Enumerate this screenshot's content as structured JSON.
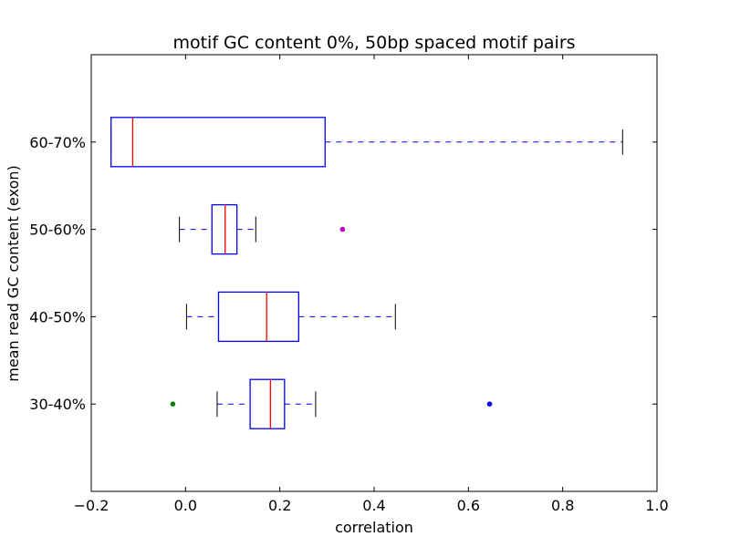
{
  "chart_data": {
    "type": "box",
    "orientation": "horizontal",
    "title": "motif GC content 0%, 50bp spaced motif pairs",
    "xlabel": "correlation",
    "ylabel": "mean read GC content (exon)",
    "xlim": [
      -0.2,
      1.0
    ],
    "x_ticks": [
      "−0.2",
      "0.0",
      "0.2",
      "0.4",
      "0.6",
      "0.8",
      "1.0"
    ],
    "x_tick_values": [
      -0.2,
      0.0,
      0.2,
      0.4,
      0.6,
      0.8,
      1.0
    ],
    "grid": false,
    "categories": [
      "30-40%",
      "40-50%",
      "50-60%",
      "60-70%"
    ],
    "boxes": [
      {
        "category": "30-40%",
        "whisker_low": 0.067,
        "q1": 0.137,
        "median": 0.18,
        "q3": 0.21,
        "whisker_high": 0.276,
        "outliers": [
          {
            "value": -0.027,
            "color": "#008000"
          },
          {
            "value": 0.645,
            "color": "#0000ff"
          }
        ]
      },
      {
        "category": "40-50%",
        "whisker_low": 0.002,
        "q1": 0.07,
        "median": 0.172,
        "q3": 0.24,
        "whisker_high": 0.445,
        "outliers": []
      },
      {
        "category": "50-60%",
        "whisker_low": -0.013,
        "q1": 0.056,
        "median": 0.084,
        "q3": 0.109,
        "whisker_high": 0.149,
        "outliers": [
          {
            "value": 0.333,
            "color": "#bf00bf"
          }
        ]
      },
      {
        "category": "60-70%",
        "whisker_low": -0.158,
        "q1": -0.158,
        "median": -0.112,
        "q3": 0.296,
        "whisker_high": 0.927,
        "outliers": []
      }
    ],
    "colors": {
      "box": "#0000ff",
      "median": "#ff0000",
      "whisker": "#0000ff",
      "cap": "#000000",
      "axes": "#000000"
    }
  }
}
